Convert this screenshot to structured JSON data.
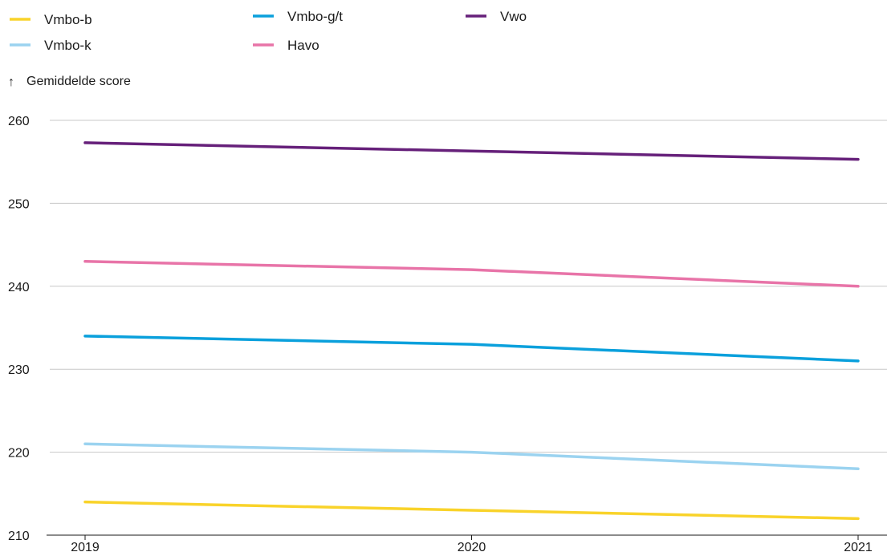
{
  "chart_data": {
    "type": "line",
    "title": "",
    "xlabel": "",
    "ylabel": "Gemiddelde score",
    "ylabel_arrow": "↑",
    "x": [
      "2019",
      "2020",
      "2021"
    ],
    "ylim": [
      210,
      260
    ],
    "yticks": [
      210,
      220,
      230,
      240,
      250,
      260
    ],
    "grid": true,
    "legend_position": "top-left",
    "series": [
      {
        "name": "Vmbo-b",
        "color": "#f9d32a",
        "values": [
          214,
          213,
          212
        ]
      },
      {
        "name": "Vmbo-k",
        "color": "#9bd3f0",
        "values": [
          221,
          220,
          218
        ]
      },
      {
        "name": "Vmbo-g/t",
        "color": "#0aa0dc",
        "values": [
          234,
          233,
          231
        ]
      },
      {
        "name": "Havo",
        "color": "#e874a8",
        "values": [
          243,
          242,
          240
        ]
      },
      {
        "name": "Vwo",
        "color": "#66207a",
        "values": [
          257.3,
          256.3,
          255.3
        ]
      }
    ]
  }
}
